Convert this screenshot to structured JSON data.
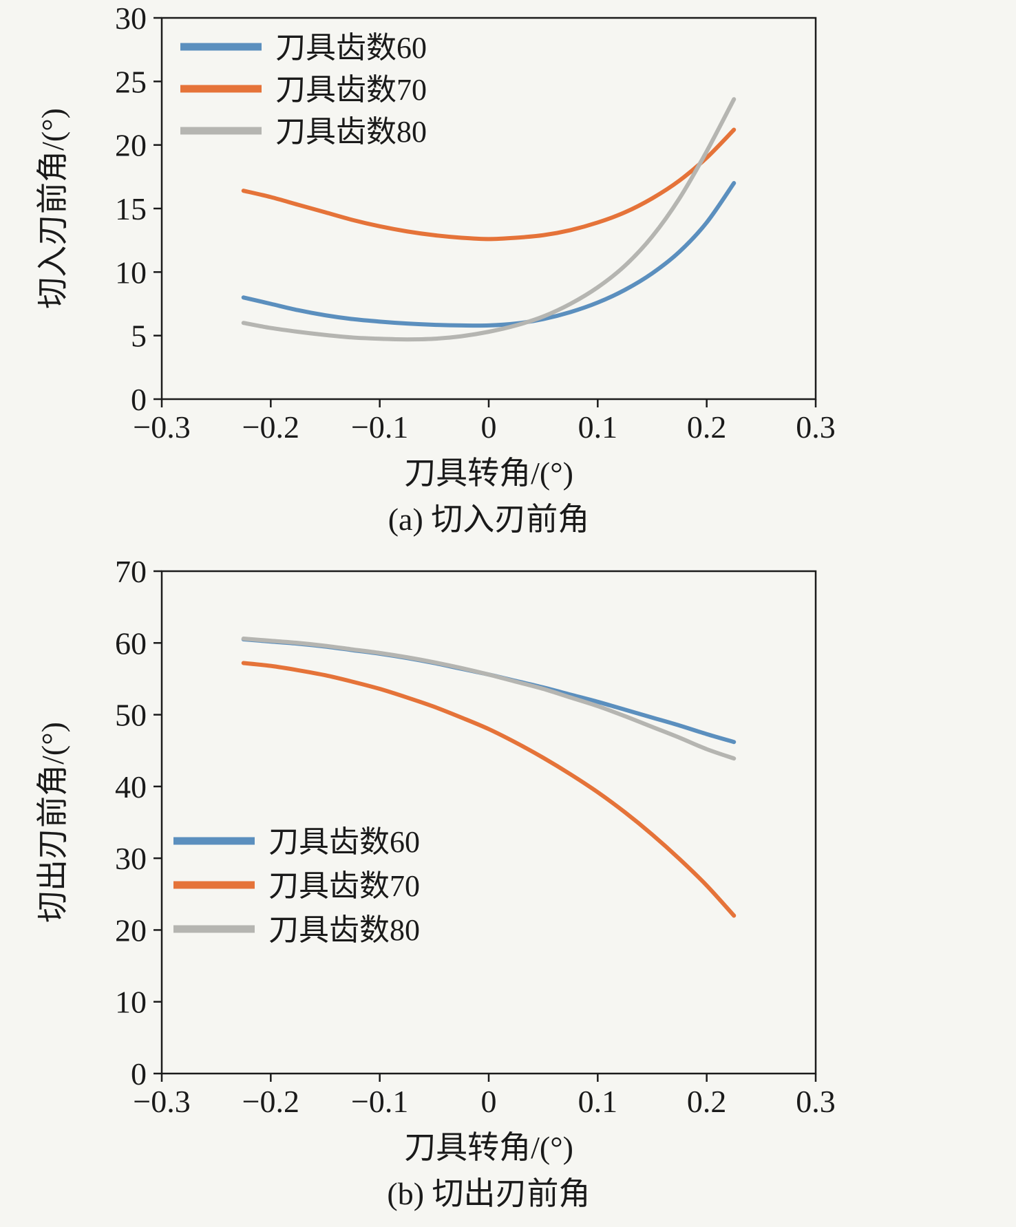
{
  "page": {
    "background": "#f6f6f2",
    "text_color": "#1a1a1a",
    "axis_color": "#1b1b1b"
  },
  "chart_data": [
    {
      "id": "a",
      "type": "line",
      "title": "(a) 切入刃前角",
      "xlabel": "刀具转角/(°)",
      "ylabel": "切入刃前角/(°)",
      "xlim": [
        -0.3,
        0.3
      ],
      "ylim": [
        0,
        30
      ],
      "xticks": [
        -0.3,
        -0.2,
        -0.1,
        0,
        0.1,
        0.2,
        0.3
      ],
      "xtick_labels": [
        "−0.3",
        "−0.2",
        "−0.1",
        "0",
        "0.1",
        "0.2",
        "0.3"
      ],
      "yticks": [
        0,
        5,
        10,
        15,
        20,
        25,
        30
      ],
      "ytick_labels": [
        "0",
        "5",
        "10",
        "15",
        "20",
        "25",
        "30"
      ],
      "grid": false,
      "legend_position": "top-left",
      "x": [
        -0.225,
        -0.2,
        -0.175,
        -0.15,
        -0.125,
        -0.1,
        -0.075,
        -0.05,
        -0.025,
        0,
        0.025,
        0.05,
        0.075,
        0.1,
        0.125,
        0.15,
        0.175,
        0.2,
        0.225
      ],
      "series": [
        {
          "name": "刀具齿数60",
          "color": "#5b8fbe",
          "values": [
            8.0,
            7.5,
            7.0,
            6.6,
            6.3,
            6.1,
            5.95,
            5.85,
            5.8,
            5.8,
            5.95,
            6.3,
            6.85,
            7.6,
            8.6,
            9.9,
            11.6,
            13.9,
            17.0
          ]
        },
        {
          "name": "刀具齿数70",
          "color": "#e57339",
          "values": [
            16.4,
            15.9,
            15.3,
            14.7,
            14.1,
            13.6,
            13.2,
            12.9,
            12.7,
            12.6,
            12.7,
            12.9,
            13.3,
            13.9,
            14.7,
            15.8,
            17.2,
            19.0,
            21.2
          ]
        },
        {
          "name": "刀具齿数80",
          "color": "#b5b5b1",
          "values": [
            6.0,
            5.6,
            5.3,
            5.05,
            4.85,
            4.75,
            4.7,
            4.75,
            4.95,
            5.3,
            5.8,
            6.5,
            7.5,
            8.8,
            10.5,
            12.8,
            15.8,
            19.5,
            23.6
          ]
        }
      ]
    },
    {
      "id": "b",
      "type": "line",
      "title": "(b) 切出刃前角",
      "xlabel": "刀具转角/(°)",
      "ylabel": "切出刃前角/(°)",
      "xlim": [
        -0.3,
        0.3
      ],
      "ylim": [
        0,
        70
      ],
      "xticks": [
        -0.3,
        -0.2,
        -0.1,
        0,
        0.1,
        0.2,
        0.3
      ],
      "xtick_labels": [
        "−0.3",
        "−0.2",
        "−0.1",
        "0",
        "0.1",
        "0.2",
        "0.3"
      ],
      "yticks": [
        0,
        10,
        20,
        30,
        40,
        50,
        60,
        70
      ],
      "ytick_labels": [
        "0",
        "10",
        "20",
        "30",
        "40",
        "50",
        "60",
        "70"
      ],
      "grid": false,
      "legend_position": "bottom-left",
      "x": [
        -0.225,
        -0.2,
        -0.175,
        -0.15,
        -0.125,
        -0.1,
        -0.075,
        -0.05,
        -0.025,
        0,
        0.025,
        0.05,
        0.075,
        0.1,
        0.125,
        0.15,
        0.175,
        0.2,
        0.225
      ],
      "series": [
        {
          "name": "刀具齿数60",
          "color": "#5b8fbe",
          "values": [
            60.5,
            60.2,
            59.9,
            59.5,
            59.0,
            58.5,
            57.9,
            57.2,
            56.4,
            55.6,
            54.7,
            53.8,
            52.8,
            51.8,
            50.7,
            49.6,
            48.5,
            47.3,
            46.2
          ]
        },
        {
          "name": "刀具齿数70",
          "color": "#e57339",
          "values": [
            57.2,
            56.8,
            56.2,
            55.5,
            54.6,
            53.6,
            52.4,
            51.1,
            49.6,
            48.0,
            46.1,
            44.0,
            41.7,
            39.2,
            36.4,
            33.3,
            29.9,
            26.2,
            22.0
          ]
        },
        {
          "name": "刀具齿数80",
          "color": "#b5b5b1",
          "values": [
            60.6,
            60.3,
            60.0,
            59.6,
            59.1,
            58.6,
            58.0,
            57.3,
            56.5,
            55.6,
            54.6,
            53.6,
            52.4,
            51.2,
            49.8,
            48.3,
            46.8,
            45.2,
            43.9
          ]
        }
      ]
    }
  ]
}
